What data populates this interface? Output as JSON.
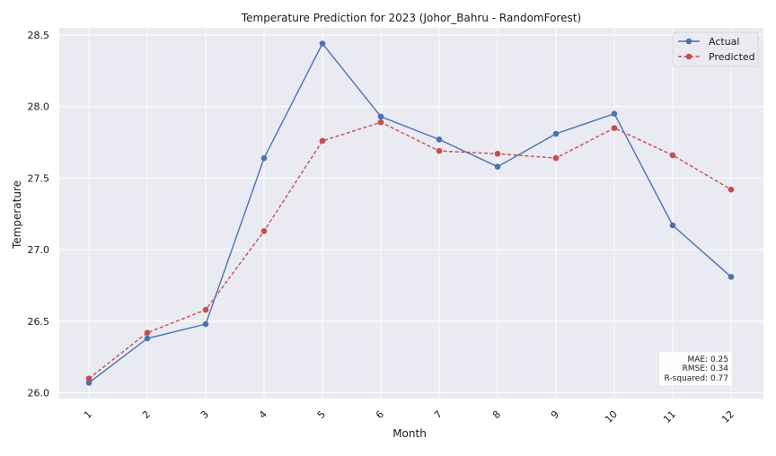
{
  "chart_data": {
    "type": "line",
    "title": "Temperature Prediction for 2023 (Johor_Bahru - RandomForest)",
    "xlabel": "Month",
    "ylabel": "Temperature",
    "x": [
      1,
      2,
      3,
      4,
      5,
      6,
      7,
      8,
      9,
      10,
      11,
      12
    ],
    "ylim": [
      25.96,
      28.55
    ],
    "yticks": [
      "26.0",
      "26.5",
      "27.0",
      "27.5",
      "28.0",
      "28.5"
    ],
    "series": [
      {
        "name": "Actual",
        "style": "solid",
        "marker": "circle",
        "color": "#4c72b0",
        "values": [
          26.07,
          26.38,
          26.48,
          27.64,
          28.44,
          27.93,
          27.77,
          27.58,
          27.81,
          27.95,
          27.17,
          26.81
        ]
      },
      {
        "name": "Predicted",
        "style": "dashed",
        "marker": "circle",
        "color": "#c44e52",
        "values": [
          26.1,
          26.42,
          26.58,
          27.13,
          27.76,
          27.89,
          27.69,
          27.67,
          27.64,
          27.85,
          27.66,
          27.42
        ]
      }
    ],
    "grid": true,
    "legend": "top-right",
    "metrics": [
      "MAE: 0.25",
      "RMSE: 0.34",
      "R-squared: 0.77"
    ]
  },
  "colors": {
    "plot_bg": "#eaeaf2",
    "grid": "#ffffff"
  }
}
